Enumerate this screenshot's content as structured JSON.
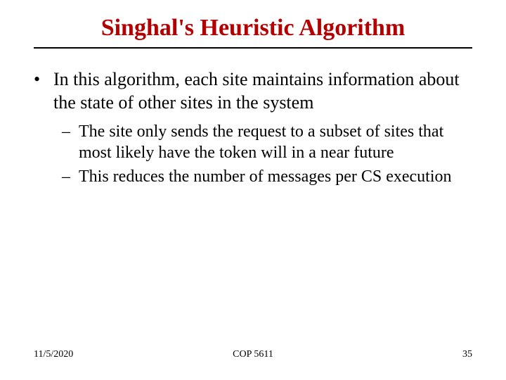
{
  "title": "Singhal's Heuristic Algorithm",
  "title_color": "#b30000",
  "rule_color": "#000000",
  "body": {
    "bullet": "In  this algorithm, each site maintains information about the state of other sites in the system",
    "sub": [
      "The site only sends the request to a subset of sites that most likely have the token will in a near future",
      "This reduces the number of messages per CS execution"
    ]
  },
  "footer": {
    "date": "11/5/2020",
    "course": "COP 5611",
    "page": "35"
  },
  "typography": {
    "title_fontsize": 34,
    "body_fontsize": 26,
    "sub_fontsize": 24,
    "footer_fontsize": 14,
    "font_family": "Times New Roman"
  },
  "background_color": "#ffffff",
  "text_color": "#000000"
}
